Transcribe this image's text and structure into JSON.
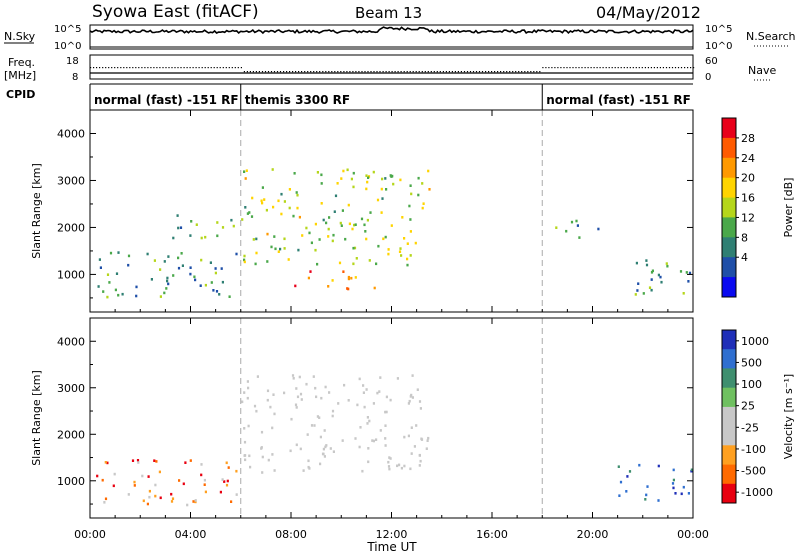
{
  "header": {
    "station": "Syowa East (fitACF)",
    "beam": "Beam 13",
    "date": "04/May/2012"
  },
  "panels": {
    "nsky_label": "N.Sky",
    "nsearch_label": "N.Search",
    "nsky_ticks": [
      "10^5",
      "10^0"
    ],
    "nsearch_ticks": [
      "10^5",
      "10^0"
    ],
    "freq_label_1": "Freq.",
    "freq_label_2": "[MHz]",
    "freq_ticks": [
      "18",
      "8"
    ],
    "nave_label": "Nave",
    "nave_ticks": [
      "60",
      "0"
    ],
    "cpid_label": "CPID"
  },
  "cpid_segments": [
    {
      "label": "normal (fast) -151 RF",
      "start": 0,
      "end": 6
    },
    {
      "label": "themis 3300 RF",
      "start": 6,
      "end": 18
    },
    {
      "label": "normal (fast) -151 RF",
      "start": 18,
      "end": 24
    }
  ],
  "chart_data": [
    {
      "type": "heatmap",
      "title": "Power",
      "xlabel": "Time UT",
      "ylabel": "Slant Range [km]",
      "xlim": [
        0,
        24
      ],
      "ylim": [
        200,
        4500
      ],
      "x_ticks": [
        "00:00",
        "04:00",
        "08:00",
        "12:00",
        "16:00",
        "20:00",
        "00:00"
      ],
      "y_ticks": [
        "1000",
        "2000",
        "3000",
        "4000"
      ],
      "colorbar": {
        "label": "Power [dB]",
        "ticks": [
          "28",
          "24",
          "20",
          "16",
          "12",
          "8",
          "4"
        ],
        "colors": [
          "#e8001a",
          "#ff5a00",
          "#ff9900",
          "#ffd400",
          "#b5d61b",
          "#4aa84a",
          "#2f7f73",
          "#1f4fa8",
          "#0a0af0"
        ]
      },
      "echo_regions": [
        {
          "t0": 0.2,
          "t1": 6.0,
          "r0": 500,
          "r1": 1500,
          "level": 8
        },
        {
          "t0": 2.8,
          "t1": 5.8,
          "r0": 1800,
          "r1": 2300,
          "level": 10
        },
        {
          "t0": 6.0,
          "t1": 13.5,
          "r0": 1200,
          "r1": 3300,
          "level": 14
        },
        {
          "t0": 8.0,
          "t1": 11.5,
          "r0": 700,
          "r1": 1100,
          "level": 22
        },
        {
          "t0": 18.5,
          "t1": 20.5,
          "r0": 1800,
          "r1": 2200,
          "level": 8
        },
        {
          "t0": 21.0,
          "t1": 24.0,
          "r0": 600,
          "r1": 1400,
          "level": 8
        }
      ]
    },
    {
      "type": "heatmap",
      "title": "Velocity",
      "xlabel": "Time UT",
      "ylabel": "Slant Range [km]",
      "xlim": [
        0,
        24
      ],
      "ylim": [
        200,
        4500
      ],
      "x_ticks": [
        "00:00",
        "04:00",
        "08:00",
        "12:00",
        "16:00",
        "20:00",
        "00:00"
      ],
      "y_ticks": [
        "1000",
        "2000",
        "3000",
        "4000"
      ],
      "colorbar": {
        "label": "Velocity [m s⁻¹]",
        "ticks": [
          "1000",
          "500",
          "100",
          "25",
          "-25",
          "-100",
          "-500",
          "-1000"
        ],
        "colors": [
          "#1f2fb8",
          "#2f6fd0",
          "#3f8f6f",
          "#6fc060",
          "#c8c8c8",
          "#c8c8c8",
          "#ffa020",
          "#ff6a00",
          "#e80010"
        ]
      },
      "echo_regions": [
        {
          "t0": 0.2,
          "t1": 6.0,
          "r0": 500,
          "r1": 1500,
          "level": -400
        },
        {
          "t0": 6.0,
          "t1": 13.5,
          "r0": 1200,
          "r1": 3300,
          "level": 0
        },
        {
          "t0": 21.0,
          "t1": 24.0,
          "r0": 600,
          "r1": 1400,
          "level": 500
        }
      ]
    }
  ]
}
